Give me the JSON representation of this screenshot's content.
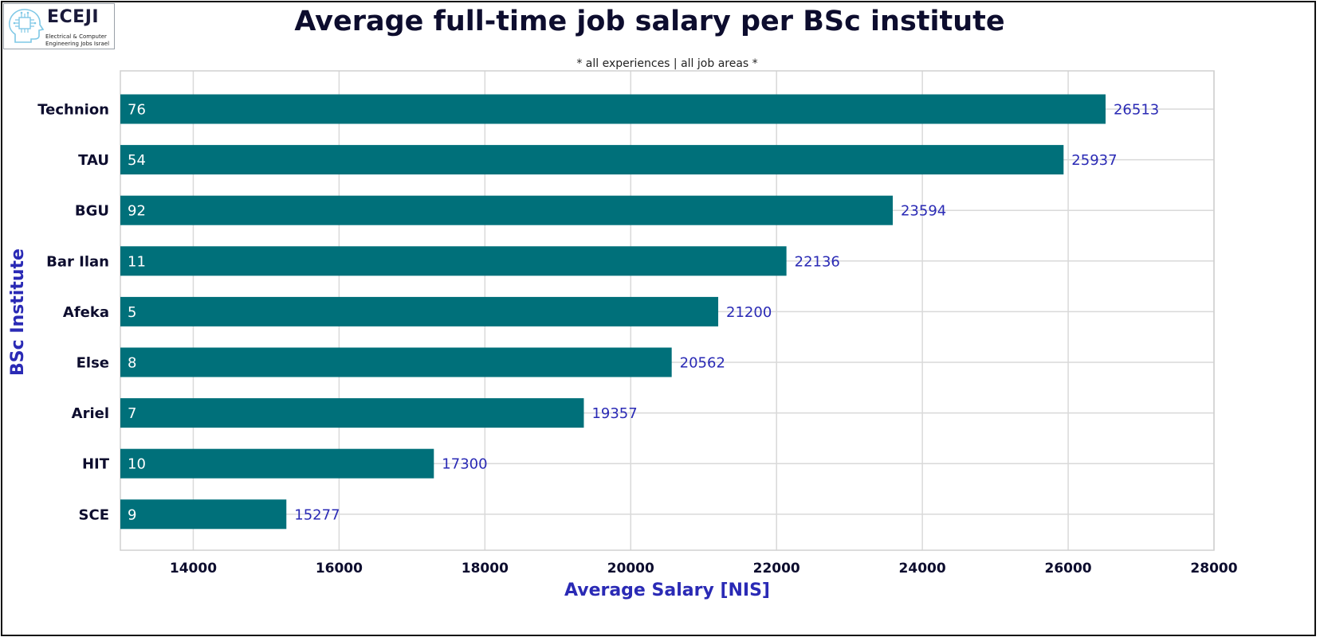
{
  "logo": {
    "title": "ECEJI",
    "subtitle_line1": "Electrical & Computer",
    "subtitle_line2": "Engineering Jobs Israel"
  },
  "chart_data": {
    "type": "bar",
    "orientation": "horizontal",
    "title": "Average full-time job salary per BSc institute",
    "subtitle": "* all experiences | all job areas *",
    "xlabel": "Average Salary [NIS]",
    "ylabel": "BSc Institute",
    "xlim": [
      13000,
      28000
    ],
    "xticks": [
      14000,
      16000,
      18000,
      20000,
      22000,
      24000,
      26000,
      28000
    ],
    "grid": true,
    "categories": [
      "Technion",
      "TAU",
      "BGU",
      "Bar Ilan",
      "Afeka",
      "Else",
      "Ariel",
      "HIT",
      "SCE"
    ],
    "values": [
      26513,
      25937,
      23594,
      22136,
      21200,
      20562,
      19357,
      17300,
      15277
    ],
    "counts": [
      76,
      54,
      92,
      11,
      5,
      8,
      7,
      10,
      9
    ],
    "colors": {
      "bar": "#00707a",
      "value_label": "#2a2ab5",
      "count_label": "#ffffff",
      "axis_title": "#2a2ab5",
      "title": "#0d0d2e",
      "tick_label": "#0d0d2e",
      "grid": "#d9d9d9"
    }
  }
}
